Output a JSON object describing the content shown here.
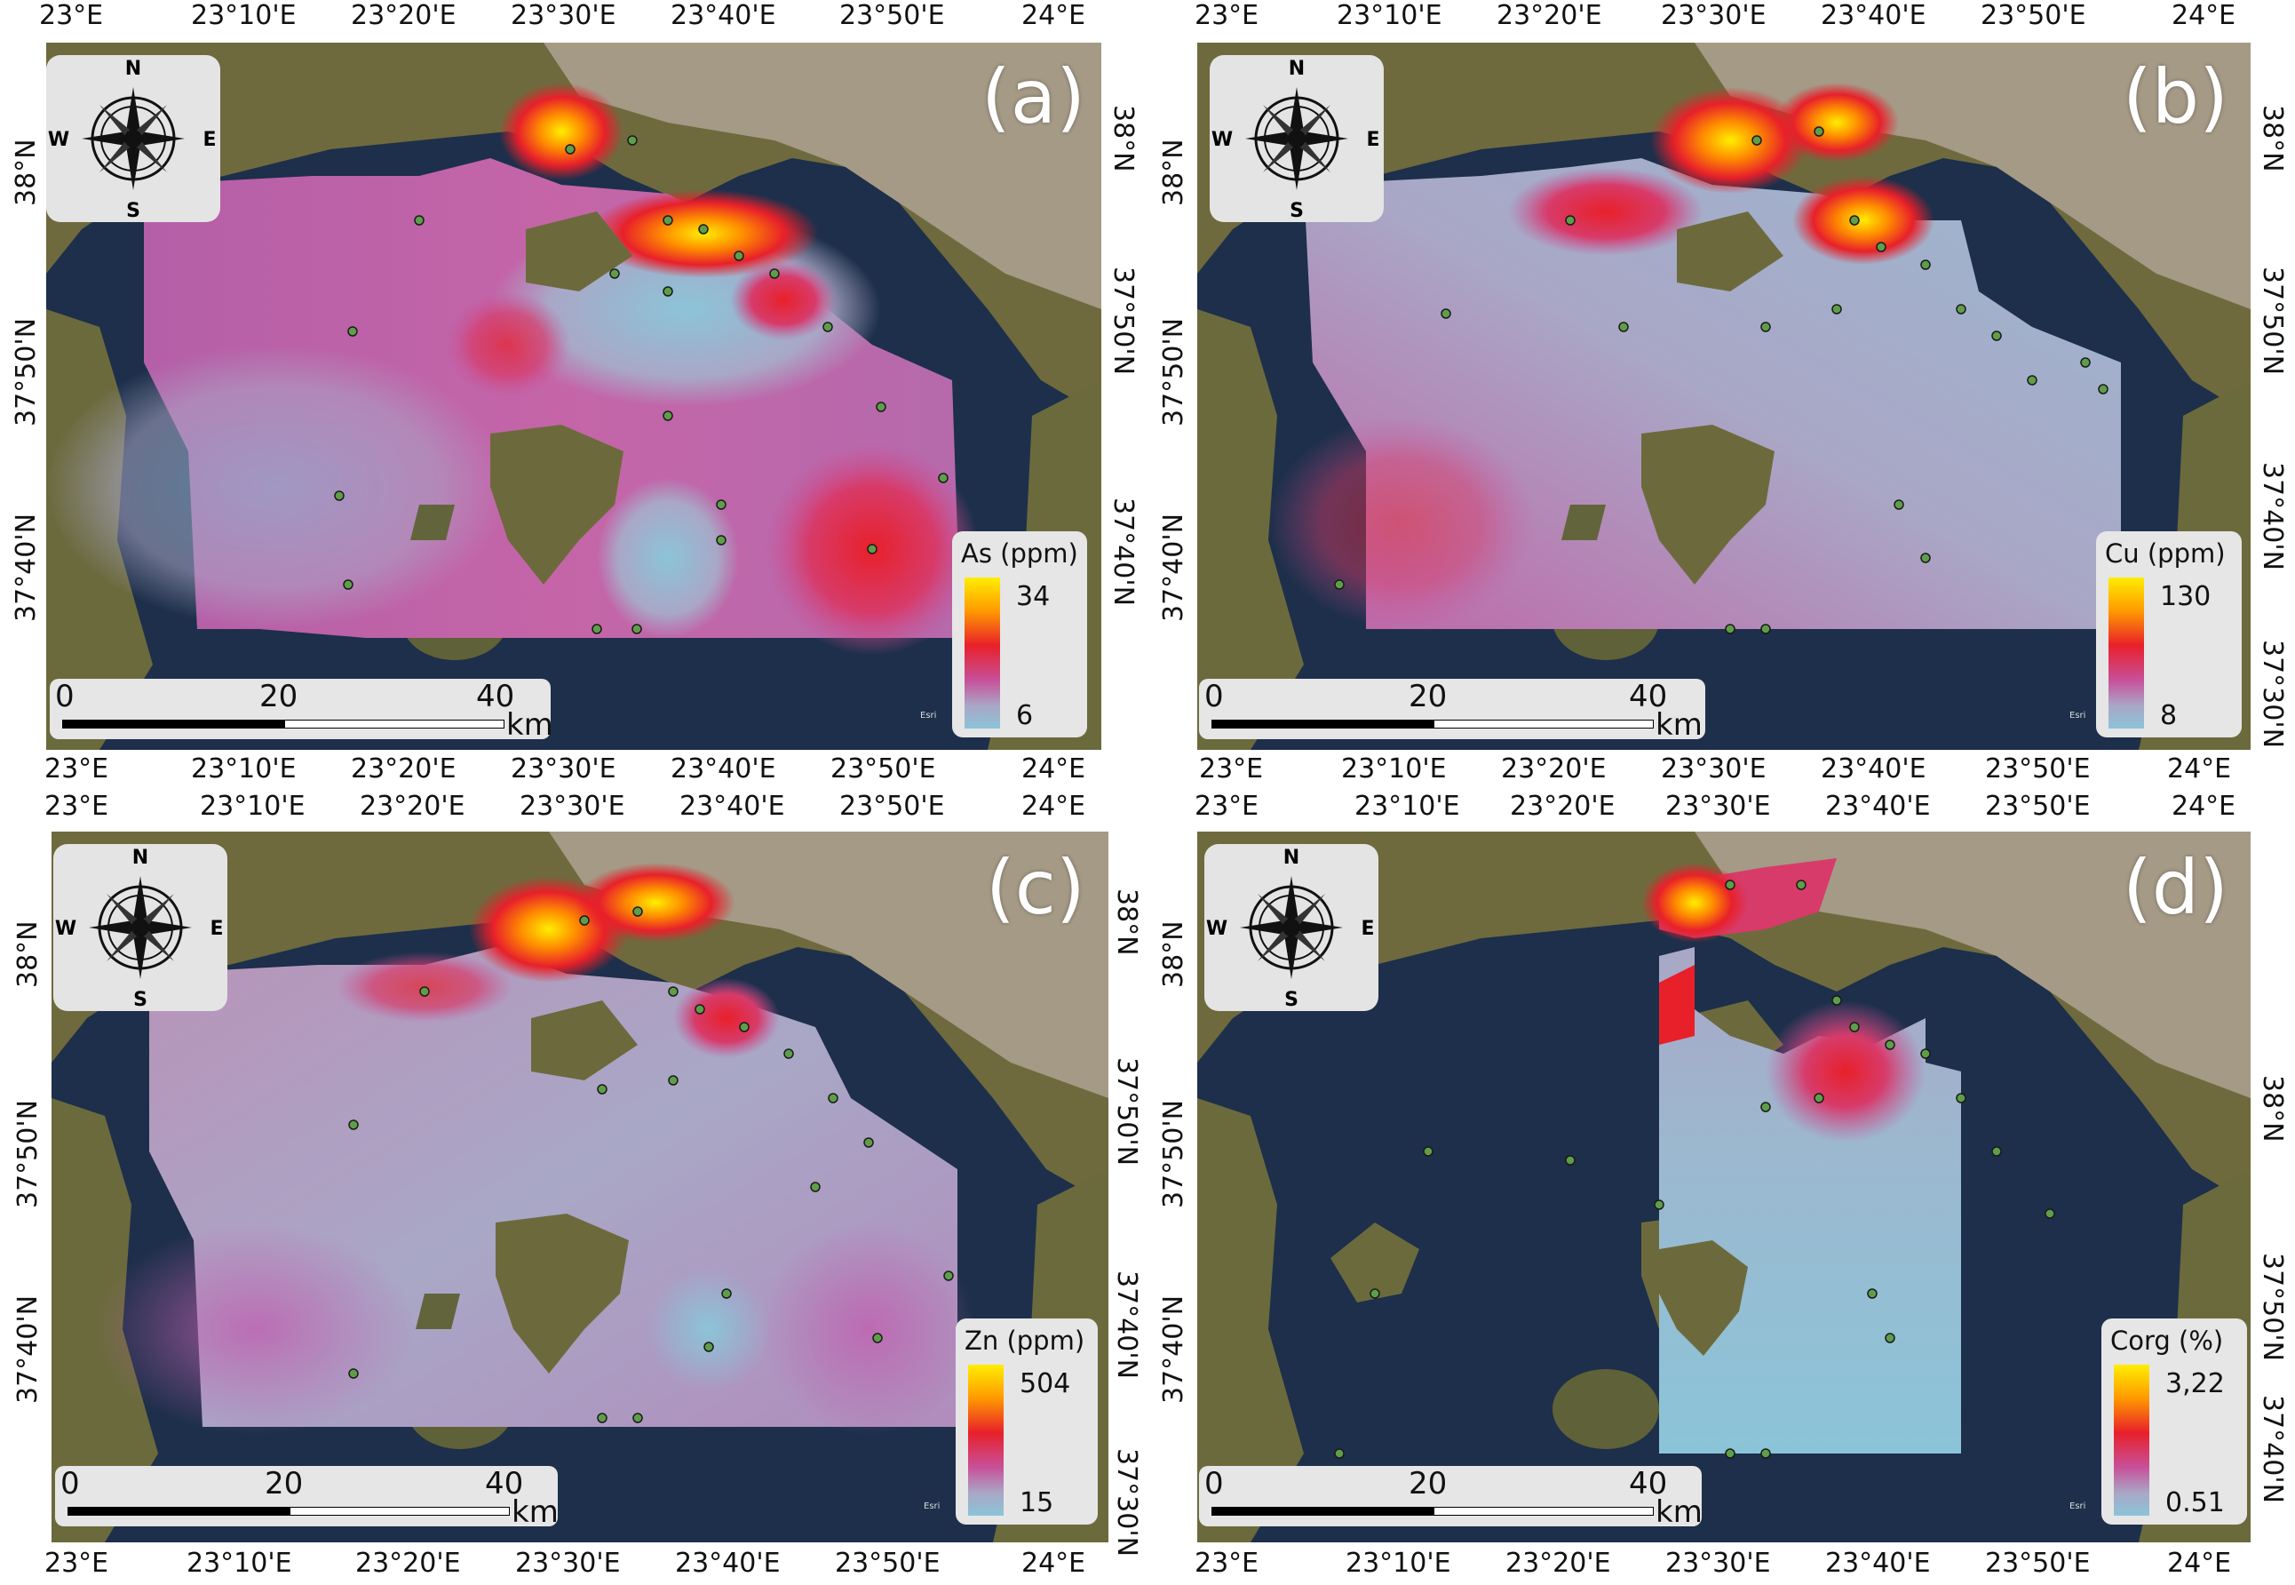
{
  "panels": [
    {
      "id": "a",
      "label": "(a)",
      "legend_title": "As (ppm)",
      "legend_max": "34",
      "legend_min": "6",
      "top_ticks": [
        "23°E",
        "23°10'E",
        "23°20'E",
        "23°30'E",
        "23°40'E",
        "23°50'E",
        "24°E"
      ],
      "bottom_ticks": [
        "23°E",
        "23°10'E",
        "23°20'E",
        "23°30'E",
        "23°40'E",
        "23°50'E",
        "24°E"
      ],
      "left_ticks": [
        "38°N",
        "37°50'N",
        "37°40'N"
      ],
      "right_ticks": [
        "38°N",
        "37°50'N",
        "37°40'N"
      ],
      "scale_labels": [
        "0",
        "20",
        "40"
      ],
      "scale_unit": "km",
      "credit": "Esri"
    },
    {
      "id": "b",
      "label": "(b)",
      "legend_title": "Cu (ppm)",
      "legend_max": "130",
      "legend_min": "8",
      "top_ticks": [
        "23°E",
        "23°10'E",
        "23°20'E",
        "23°30'E",
        "23°40'E",
        "23°50'E",
        "24°E"
      ],
      "bottom_ticks": [
        "23°E",
        "23°10'E",
        "23°20'E",
        "23°30'E",
        "23°40'E",
        "23°50'E",
        "24°E"
      ],
      "left_ticks": [
        "38°N",
        "37°50'N",
        "37°40'N"
      ],
      "right_ticks": [
        "38°N",
        "37°50'N",
        "37°40'N",
        "37°30'N"
      ],
      "scale_labels": [
        "0",
        "20",
        "40"
      ],
      "scale_unit": "km",
      "credit": "Esri"
    },
    {
      "id": "c",
      "label": "(c)",
      "legend_title": "Zn (ppm)",
      "legend_max": "504",
      "legend_min": "15",
      "top_ticks": [
        "23°E",
        "23°10'E",
        "23°20'E",
        "23°30'E",
        "23°40'E",
        "23°50'E",
        "24°E"
      ],
      "bottom_ticks": [
        "23°E",
        "23°10'E",
        "23°20'E",
        "23°30'E",
        "23°40'E",
        "23°50'E",
        "24°E"
      ],
      "left_ticks": [
        "38°N",
        "37°50'N",
        "37°40'N"
      ],
      "right_ticks": [
        "38°N",
        "37°50'N",
        "37°40'N",
        "37°30'N"
      ],
      "scale_labels": [
        "0",
        "20",
        "40"
      ],
      "scale_unit": "km",
      "credit": "Esri"
    },
    {
      "id": "d",
      "label": "(d)",
      "legend_title": "Corg (%)",
      "legend_max": "3,22",
      "legend_min": "0.51",
      "top_ticks": [
        "23°E",
        "23°10'E",
        "23°20'E",
        "23°30'E",
        "23°40'E",
        "23°50'E",
        "24°E"
      ],
      "bottom_ticks": [
        "23°E",
        "23°10'E",
        "23°20'E",
        "23°30'E",
        "23°40'E",
        "23°50'E",
        "24°E"
      ],
      "left_ticks": [
        "38°N",
        "37°50'N",
        "37°40'N"
      ],
      "right_ticks": [
        "38°N",
        "37°50'N",
        "37°40'N"
      ],
      "scale_labels": [
        "0",
        "20",
        "40"
      ],
      "scale_unit": "km",
      "credit": "Esri"
    }
  ],
  "compass_letters": {
    "n": "N",
    "s": "S",
    "e": "E",
    "w": "W"
  },
  "colors": {
    "sea": "#1d2f4a",
    "land": "#6e6a3e",
    "urban": "#a59a86",
    "low": "#8bc4d8",
    "mid": "#c8509a",
    "high_red": "#e8202a",
    "high_yellow": "#ffee00"
  }
}
